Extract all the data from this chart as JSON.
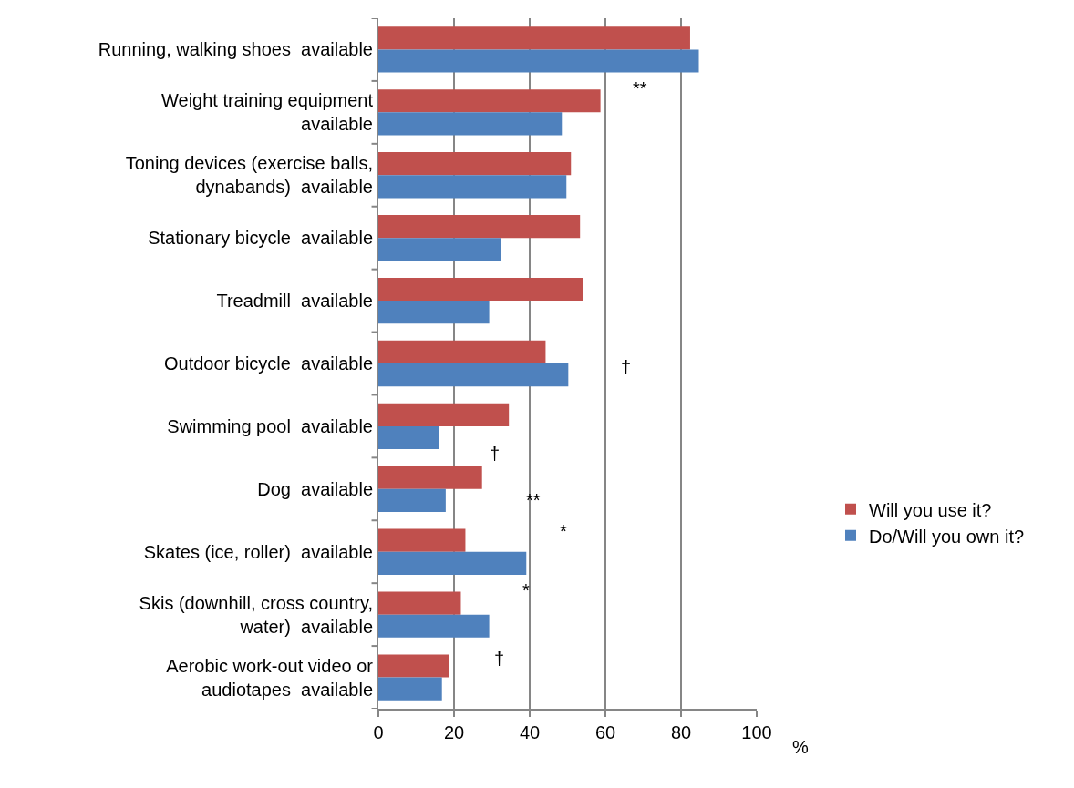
{
  "chart_data": {
    "type": "bar",
    "orientation": "horizontal",
    "categories": [
      "Running, walking shoes  available",
      "Weight training equipment available",
      "Toning devices (exercise balls, dynabands)  available",
      "Stationary bicycle  available",
      "Treadmill  available",
      "Outdoor bicycle  available",
      "Swimming pool  available",
      "Dog  available",
      "Skates (ice, roller)  available",
      "Skis (downhill, cross country, water)  available",
      "Aerobic work-out video or audiotapes  available"
    ],
    "series": [
      {
        "name": "Will you use it?",
        "color": "#c0504d",
        "values": [
          82.4,
          58.7,
          50.9,
          53.3,
          54.1,
          44.2,
          34.5,
          27.4,
          23.0,
          21.8,
          18.7
        ]
      },
      {
        "name": "Do/Will you own it?",
        "color": "#4f81bd",
        "values": [
          84.7,
          48.5,
          49.7,
          32.4,
          29.3,
          50.2,
          16.0,
          17.8,
          39.1,
          29.3,
          16.8
        ]
      }
    ],
    "xlim": [
      0,
      100
    ],
    "xticks": [
      0,
      20,
      40,
      60,
      80,
      100
    ],
    "xlabel": "%",
    "grid": "x",
    "legend": "right",
    "annotations": [
      "**",
      "†",
      "†",
      "**",
      "*",
      "*",
      "†"
    ]
  }
}
